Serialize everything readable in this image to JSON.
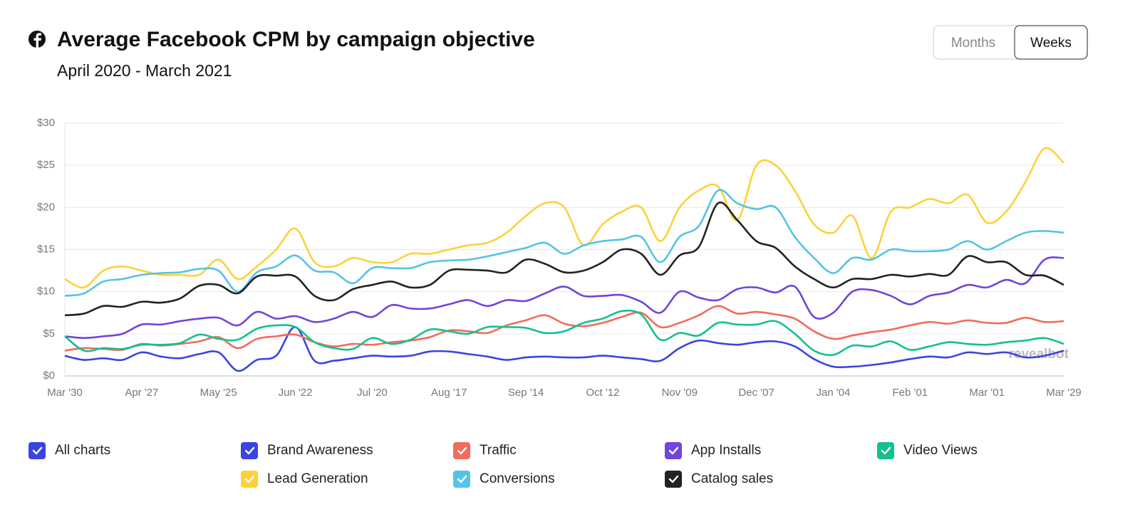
{
  "controls": {
    "toggle": [
      "Months",
      "Weeks"
    ],
    "all_charts": "All charts",
    "watermark": "revealbot"
  },
  "chart_data": {
    "type": "line",
    "title": "Average Facebook CPM by campaign objective",
    "subtitle": "April 2020 - March 2021",
    "categories": [
      "Mar '30",
      null,
      null,
      null,
      "Apr '27",
      null,
      null,
      null,
      "May '25",
      null,
      null,
      null,
      "Jun '22",
      null,
      null,
      null,
      "Jul '20",
      null,
      null,
      null,
      "Aug '17",
      null,
      null,
      null,
      "Sep '14",
      null,
      null,
      null,
      "Oct '12",
      null,
      null,
      null,
      "Nov '09",
      null,
      null,
      null,
      "Dec '07",
      null,
      null,
      null,
      "Jan '04",
      null,
      null,
      null,
      "Feb '01",
      null,
      null,
      null,
      "Mar '01",
      null,
      null,
      null,
      "Mar '29"
    ],
    "ylim": [
      0,
      30
    ],
    "yticks": [
      {
        "value": 0,
        "label": "$0"
      },
      {
        "value": 5,
        "label": "$5"
      },
      {
        "value": 10,
        "label": "$10"
      },
      {
        "value": 15,
        "label": "$15"
      },
      {
        "value": 20,
        "label": "$20"
      },
      {
        "value": 25,
        "label": "$25"
      },
      {
        "value": 30,
        "label": "$30"
      }
    ],
    "grid": true,
    "series": [
      {
        "name": "Brand Awareness",
        "color": "#3a44e0",
        "values": [
          2.4,
          1.9,
          2.1,
          1.9,
          2.8,
          2.3,
          2.1,
          2.6,
          2.8,
          0.6,
          1.9,
          2.4,
          5.8,
          1.8,
          1.8,
          2.1,
          2.4,
          2.3,
          2.4,
          2.9,
          2.9,
          2.6,
          2.3,
          1.9,
          2.2,
          2.3,
          2.2,
          2.2,
          2.4,
          2.2,
          2,
          1.8,
          3.3,
          4.2,
          3.9,
          3.7,
          4,
          4.1,
          3.5,
          2,
          1.1,
          1.1,
          1.3,
          1.6,
          2,
          2.3,
          2.2,
          2.8,
          2.6,
          2.8,
          2.2,
          2.4,
          3
        ]
      },
      {
        "name": "Traffic",
        "color": "#f26b5b",
        "values": [
          3,
          3.3,
          3.2,
          3.1,
          3.8,
          3.6,
          3.8,
          4.1,
          4.6,
          3.3,
          4.4,
          4.7,
          4.9,
          4,
          3.5,
          3.8,
          3.7,
          4,
          4.2,
          4.6,
          5.4,
          5.3,
          5.1,
          6,
          6.6,
          7.2,
          6.2,
          5.9,
          6.3,
          7,
          7.5,
          5.8,
          6.3,
          7.2,
          8.3,
          7.4,
          7.6,
          7.3,
          6.8,
          5.3,
          4.4,
          4.8,
          5.2,
          5.5,
          6,
          6.4,
          6.2,
          6.6,
          6.3,
          6.3,
          6.9,
          6.4,
          6.5
        ]
      },
      {
        "name": "App Installs",
        "color": "#7045db",
        "values": [
          4.7,
          4.5,
          4.7,
          5,
          6.1,
          6.1,
          6.5,
          6.8,
          6.9,
          6,
          7.6,
          6.8,
          7.1,
          6.4,
          6.8,
          7.6,
          7,
          8.4,
          8,
          8,
          8.5,
          9,
          8.3,
          9,
          8.9,
          9.8,
          10.6,
          9.5,
          9.5,
          9.6,
          8.8,
          7.5,
          10,
          9.3,
          9,
          10.3,
          10.5,
          9.9,
          10.6,
          7,
          7.5,
          10,
          10.2,
          9.5,
          8.5,
          9.5,
          9.9,
          10.8,
          10.5,
          11.4,
          11,
          13.8,
          14
        ]
      },
      {
        "name": "Video Views",
        "color": "#14c08e",
        "values": [
          4.7,
          3,
          3.3,
          3.2,
          3.7,
          3.7,
          3.9,
          4.9,
          4.4,
          4.3,
          5.6,
          6,
          5.8,
          4,
          3.3,
          3.2,
          4.5,
          3.8,
          4.3,
          5.5,
          5.3,
          5,
          5.8,
          5.8,
          5.7,
          5.1,
          5.3,
          6.3,
          6.8,
          7.7,
          7.3,
          4.3,
          5.1,
          4.8,
          6.3,
          6.1,
          6.1,
          6.5,
          5,
          3,
          2.5,
          3.6,
          3.5,
          4.1,
          3.1,
          3.5,
          4,
          3.8,
          3.7,
          4,
          4.2,
          4.5,
          3.8
        ]
      },
      {
        "name": "Lead Generation",
        "color": "#fdd13a",
        "values": [
          11.5,
          10.5,
          12.5,
          13,
          12.5,
          12,
          12,
          12,
          13.8,
          11.5,
          13,
          15,
          17.5,
          13.5,
          13,
          14,
          13.5,
          13.5,
          14.5,
          14.5,
          15,
          15.5,
          15.8,
          17,
          19,
          20.5,
          20,
          15.5,
          18,
          19.5,
          20,
          16,
          20,
          22,
          22.5,
          18.5,
          25,
          25,
          22,
          18,
          17,
          19,
          14,
          19.5,
          20,
          21,
          20.5,
          21.5,
          18.2,
          19.5,
          23,
          27,
          25.3
        ]
      },
      {
        "name": "Conversions",
        "color": "#55c3e6",
        "values": [
          9.5,
          9.8,
          11.2,
          11.5,
          12,
          12.2,
          12.3,
          12.7,
          12.5,
          10,
          12.3,
          13,
          14.3,
          12.5,
          12.3,
          11,
          12.8,
          12.8,
          12.8,
          13.5,
          13.7,
          13.8,
          14.2,
          14.7,
          15.2,
          15.8,
          14.5,
          15.5,
          16,
          16.2,
          16.5,
          13.5,
          16.5,
          17.8,
          22,
          20.5,
          19.8,
          20,
          16.5,
          14,
          12.2,
          14,
          13.8,
          15,
          14.8,
          14.8,
          15,
          16,
          15,
          16,
          17,
          17.2,
          17
        ]
      },
      {
        "name": "Catalog sales",
        "color": "#222222",
        "values": [
          7.2,
          7.4,
          8.3,
          8.2,
          8.8,
          8.7,
          9.2,
          10.7,
          10.8,
          9.8,
          11.8,
          11.9,
          11.8,
          9.5,
          9,
          10.3,
          10.8,
          11.2,
          10.5,
          10.8,
          12.5,
          12.6,
          12.5,
          12.3,
          13.8,
          13.3,
          12.3,
          12.5,
          13.5,
          15,
          14.5,
          12,
          14.3,
          15.3,
          20.5,
          18.5,
          16,
          15.2,
          13,
          11.5,
          10.5,
          11.5,
          11.5,
          12,
          11.8,
          12.1,
          12,
          14.2,
          13.5,
          13.5,
          12,
          11.9,
          10.8
        ]
      }
    ]
  }
}
